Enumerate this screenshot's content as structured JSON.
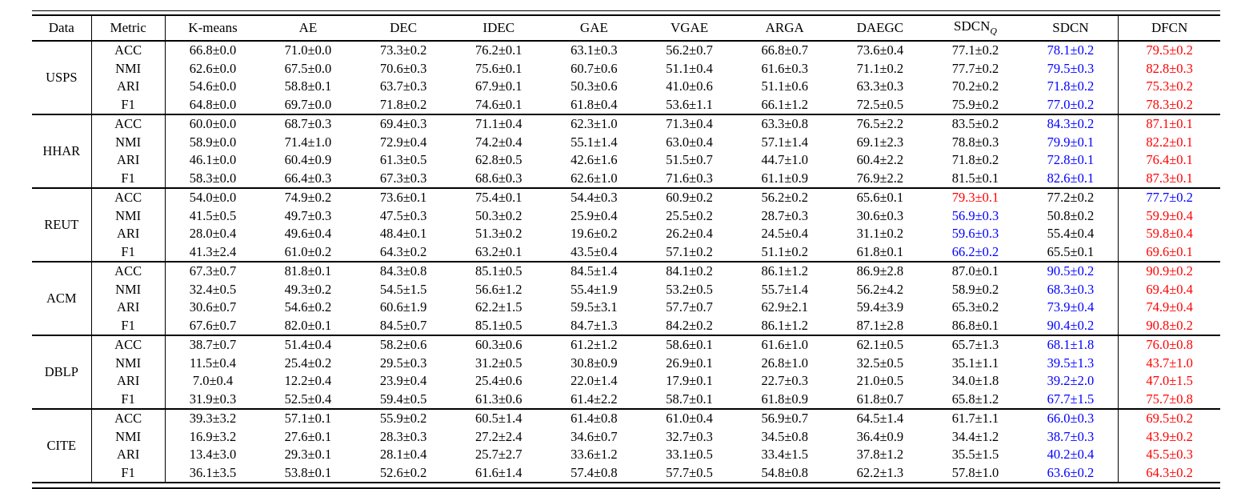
{
  "table": {
    "header": [
      {
        "label": "Data"
      },
      {
        "label": "Metric"
      },
      {
        "label": "K-means"
      },
      {
        "label": "AE"
      },
      {
        "label": "DEC"
      },
      {
        "label": "IDEC"
      },
      {
        "label": "GAE"
      },
      {
        "label": "VGAE"
      },
      {
        "label": "ARGA"
      },
      {
        "label": "DAEGC"
      },
      {
        "label": "SDCN",
        "sub": "Q"
      },
      {
        "label": "SDCN"
      },
      {
        "label": "DFCN"
      }
    ],
    "colors": {
      "best": "#ff0000",
      "second": "#0000ff",
      "normal": "#000000"
    },
    "datasets": [
      {
        "name": "USPS",
        "rows": [
          {
            "metric": "ACC",
            "values": [
              "66.8±0.0",
              "71.0±0.0",
              "73.3±0.2",
              "76.2±0.1",
              "63.1±0.3",
              "56.2±0.7",
              "66.8±0.7",
              "73.6±0.4",
              "77.1±0.2",
              "78.1±0.2",
              "79.5±0.2"
            ],
            "marks": [
              "",
              "",
              "",
              "",
              "",
              "",
              "",
              "",
              "",
              "second",
              "best"
            ]
          },
          {
            "metric": "NMI",
            "values": [
              "62.6±0.0",
              "67.5±0.0",
              "70.6±0.3",
              "75.6±0.1",
              "60.7±0.6",
              "51.1±0.4",
              "61.6±0.3",
              "71.1±0.2",
              "77.7±0.2",
              "79.5±0.3",
              "82.8±0.3"
            ],
            "marks": [
              "",
              "",
              "",
              "",
              "",
              "",
              "",
              "",
              "",
              "second",
              "best"
            ]
          },
          {
            "metric": "ARI",
            "values": [
              "54.6±0.0",
              "58.8±0.1",
              "63.7±0.3",
              "67.9±0.1",
              "50.3±0.6",
              "41.0±0.6",
              "51.1±0.6",
              "63.3±0.3",
              "70.2±0.2",
              "71.8±0.2",
              "75.3±0.2"
            ],
            "marks": [
              "",
              "",
              "",
              "",
              "",
              "",
              "",
              "",
              "",
              "second",
              "best"
            ]
          },
          {
            "metric": "F1",
            "values": [
              "64.8±0.0",
              "69.7±0.0",
              "71.8±0.2",
              "74.6±0.1",
              "61.8±0.4",
              "53.6±1.1",
              "66.1±1.2",
              "72.5±0.5",
              "75.9±0.2",
              "77.0±0.2",
              "78.3±0.2"
            ],
            "marks": [
              "",
              "",
              "",
              "",
              "",
              "",
              "",
              "",
              "",
              "second",
              "best"
            ]
          }
        ]
      },
      {
        "name": "HHAR",
        "rows": [
          {
            "metric": "ACC",
            "values": [
              "60.0±0.0",
              "68.7±0.3",
              "69.4±0.3",
              "71.1±0.4",
              "62.3±1.0",
              "71.3±0.4",
              "63.3±0.8",
              "76.5±2.2",
              "83.5±0.2",
              "84.3±0.2",
              "87.1±0.1"
            ],
            "marks": [
              "",
              "",
              "",
              "",
              "",
              "",
              "",
              "",
              "",
              "second",
              "best"
            ]
          },
          {
            "metric": "NMI",
            "values": [
              "58.9±0.0",
              "71.4±1.0",
              "72.9±0.4",
              "74.2±0.4",
              "55.1±1.4",
              "63.0±0.4",
              "57.1±1.4",
              "69.1±2.3",
              "78.8±0.3",
              "79.9±0.1",
              "82.2±0.1"
            ],
            "marks": [
              "",
              "",
              "",
              "",
              "",
              "",
              "",
              "",
              "",
              "second",
              "best"
            ]
          },
          {
            "metric": "ARI",
            "values": [
              "46.1±0.0",
              "60.4±0.9",
              "61.3±0.5",
              "62.8±0.5",
              "42.6±1.6",
              "51.5±0.7",
              "44.7±1.0",
              "60.4±2.2",
              "71.8±0.2",
              "72.8±0.1",
              "76.4±0.1"
            ],
            "marks": [
              "",
              "",
              "",
              "",
              "",
              "",
              "",
              "",
              "",
              "second",
              "best"
            ]
          },
          {
            "metric": "F1",
            "values": [
              "58.3±0.0",
              "66.4±0.3",
              "67.3±0.3",
              "68.6±0.3",
              "62.6±1.0",
              "71.6±0.3",
              "61.1±0.9",
              "76.9±2.2",
              "81.5±0.1",
              "82.6±0.1",
              "87.3±0.1"
            ],
            "marks": [
              "",
              "",
              "",
              "",
              "",
              "",
              "",
              "",
              "",
              "second",
              "best"
            ]
          }
        ]
      },
      {
        "name": "REUT",
        "rows": [
          {
            "metric": "ACC",
            "values": [
              "54.0±0.0",
              "74.9±0.2",
              "73.6±0.1",
              "75.4±0.1",
              "54.4±0.3",
              "60.9±0.2",
              "56.2±0.2",
              "65.6±0.1",
              "79.3±0.1",
              "77.2±0.2",
              "77.7±0.2"
            ],
            "marks": [
              "",
              "",
              "",
              "",
              "",
              "",
              "",
              "",
              "best",
              "",
              "second"
            ]
          },
          {
            "metric": "NMI",
            "values": [
              "41.5±0.5",
              "49.7±0.3",
              "47.5±0.3",
              "50.3±0.2",
              "25.9±0.4",
              "25.5±0.2",
              "28.7±0.3",
              "30.6±0.3",
              "56.9±0.3",
              "50.8±0.2",
              "59.9±0.4"
            ],
            "marks": [
              "",
              "",
              "",
              "",
              "",
              "",
              "",
              "",
              "second",
              "",
              "best"
            ]
          },
          {
            "metric": "ARI",
            "values": [
              "28.0±0.4",
              "49.6±0.4",
              "48.4±0.1",
              "51.3±0.2",
              "19.6±0.2",
              "26.2±0.4",
              "24.5±0.4",
              "31.1±0.2",
              "59.6±0.3",
              "55.4±0.4",
              "59.8±0.4"
            ],
            "marks": [
              "",
              "",
              "",
              "",
              "",
              "",
              "",
              "",
              "second",
              "",
              "best"
            ]
          },
          {
            "metric": "F1",
            "values": [
              "41.3±2.4",
              "61.0±0.2",
              "64.3±0.2",
              "63.2±0.1",
              "43.5±0.4",
              "57.1±0.2",
              "51.1±0.2",
              "61.8±0.1",
              "66.2±0.2",
              "65.5±0.1",
              "69.6±0.1"
            ],
            "marks": [
              "",
              "",
              "",
              "",
              "",
              "",
              "",
              "",
              "second",
              "",
              "best"
            ]
          }
        ]
      },
      {
        "name": "ACM",
        "rows": [
          {
            "metric": "ACC",
            "values": [
              "67.3±0.7",
              "81.8±0.1",
              "84.3±0.8",
              "85.1±0.5",
              "84.5±1.4",
              "84.1±0.2",
              "86.1±1.2",
              "86.9±2.8",
              "87.0±0.1",
              "90.5±0.2",
              "90.9±0.2"
            ],
            "marks": [
              "",
              "",
              "",
              "",
              "",
              "",
              "",
              "",
              "",
              "second",
              "best"
            ]
          },
          {
            "metric": "NMI",
            "values": [
              "32.4±0.5",
              "49.3±0.2",
              "54.5±1.5",
              "56.6±1.2",
              "55.4±1.9",
              "53.2±0.5",
              "55.7±1.4",
              "56.2±4.2",
              "58.9±0.2",
              "68.3±0.3",
              "69.4±0.4"
            ],
            "marks": [
              "",
              "",
              "",
              "",
              "",
              "",
              "",
              "",
              "",
              "second",
              "best"
            ]
          },
          {
            "metric": "ARI",
            "values": [
              "30.6±0.7",
              "54.6±0.2",
              "60.6±1.9",
              "62.2±1.5",
              "59.5±3.1",
              "57.7±0.7",
              "62.9±2.1",
              "59.4±3.9",
              "65.3±0.2",
              "73.9±0.4",
              "74.9±0.4"
            ],
            "marks": [
              "",
              "",
              "",
              "",
              "",
              "",
              "",
              "",
              "",
              "second",
              "best"
            ]
          },
          {
            "metric": "F1",
            "values": [
              "67.6±0.7",
              "82.0±0.1",
              "84.5±0.7",
              "85.1±0.5",
              "84.7±1.3",
              "84.2±0.2",
              "86.1±1.2",
              "87.1±2.8",
              "86.8±0.1",
              "90.4±0.2",
              "90.8±0.2"
            ],
            "marks": [
              "",
              "",
              "",
              "",
              "",
              "",
              "",
              "",
              "",
              "second",
              "best"
            ]
          }
        ]
      },
      {
        "name": "DBLP",
        "rows": [
          {
            "metric": "ACC",
            "values": [
              "38.7±0.7",
              "51.4±0.4",
              "58.2±0.6",
              "60.3±0.6",
              "61.2±1.2",
              "58.6±0.1",
              "61.6±1.0",
              "62.1±0.5",
              "65.7±1.3",
              "68.1±1.8",
              "76.0±0.8"
            ],
            "marks": [
              "",
              "",
              "",
              "",
              "",
              "",
              "",
              "",
              "",
              "second",
              "best"
            ]
          },
          {
            "metric": "NMI",
            "values": [
              "11.5±0.4",
              "25.4±0.2",
              "29.5±0.3",
              "31.2±0.5",
              "30.8±0.9",
              "26.9±0.1",
              "26.8±1.0",
              "32.5±0.5",
              "35.1±1.1",
              "39.5±1.3",
              "43.7±1.0"
            ],
            "marks": [
              "",
              "",
              "",
              "",
              "",
              "",
              "",
              "",
              "",
              "second",
              "best"
            ]
          },
          {
            "metric": "ARI",
            "values": [
              "7.0±0.4",
              "12.2±0.4",
              "23.9±0.4",
              "25.4±0.6",
              "22.0±1.4",
              "17.9±0.1",
              "22.7±0.3",
              "21.0±0.5",
              "34.0±1.8",
              "39.2±2.0",
              "47.0±1.5"
            ],
            "marks": [
              "",
              "",
              "",
              "",
              "",
              "",
              "",
              "",
              "",
              "second",
              "best"
            ]
          },
          {
            "metric": "F1",
            "values": [
              "31.9±0.3",
              "52.5±0.4",
              "59.4±0.5",
              "61.3±0.6",
              "61.4±2.2",
              "58.7±0.1",
              "61.8±0.9",
              "61.8±0.7",
              "65.8±1.2",
              "67.7±1.5",
              "75.7±0.8"
            ],
            "marks": [
              "",
              "",
              "",
              "",
              "",
              "",
              "",
              "",
              "",
              "second",
              "best"
            ]
          }
        ]
      },
      {
        "name": "CITE",
        "rows": [
          {
            "metric": "ACC",
            "values": [
              "39.3±3.2",
              "57.1±0.1",
              "55.9±0.2",
              "60.5±1.4",
              "61.4±0.8",
              "61.0±0.4",
              "56.9±0.7",
              "64.5±1.4",
              "61.7±1.1",
              "66.0±0.3",
              "69.5±0.2"
            ],
            "marks": [
              "",
              "",
              "",
              "",
              "",
              "",
              "",
              "",
              "",
              "second",
              "best"
            ]
          },
          {
            "metric": "NMI",
            "values": [
              "16.9±3.2",
              "27.6±0.1",
              "28.3±0.3",
              "27.2±2.4",
              "34.6±0.7",
              "32.7±0.3",
              "34.5±0.8",
              "36.4±0.9",
              "34.4±1.2",
              "38.7±0.3",
              "43.9±0.2"
            ],
            "marks": [
              "",
              "",
              "",
              "",
              "",
              "",
              "",
              "",
              "",
              "second",
              "best"
            ]
          },
          {
            "metric": "ARI",
            "values": [
              "13.4±3.0",
              "29.3±0.1",
              "28.1±0.4",
              "25.7±2.7",
              "33.6±1.2",
              "33.1±0.5",
              "33.4±1.5",
              "37.8±1.2",
              "35.5±1.5",
              "40.2±0.4",
              "45.5±0.3"
            ],
            "marks": [
              "",
              "",
              "",
              "",
              "",
              "",
              "",
              "",
              "",
              "second",
              "best"
            ]
          },
          {
            "metric": "F1",
            "values": [
              "36.1±3.5",
              "53.8±0.1",
              "52.6±0.2",
              "61.6±1.4",
              "57.4±0.8",
              "57.7±0.5",
              "54.8±0.8",
              "62.2±1.3",
              "57.8±1.0",
              "63.6±0.2",
              "64.3±0.2"
            ],
            "marks": [
              "",
              "",
              "",
              "",
              "",
              "",
              "",
              "",
              "",
              "second",
              "best"
            ]
          }
        ]
      }
    ]
  }
}
